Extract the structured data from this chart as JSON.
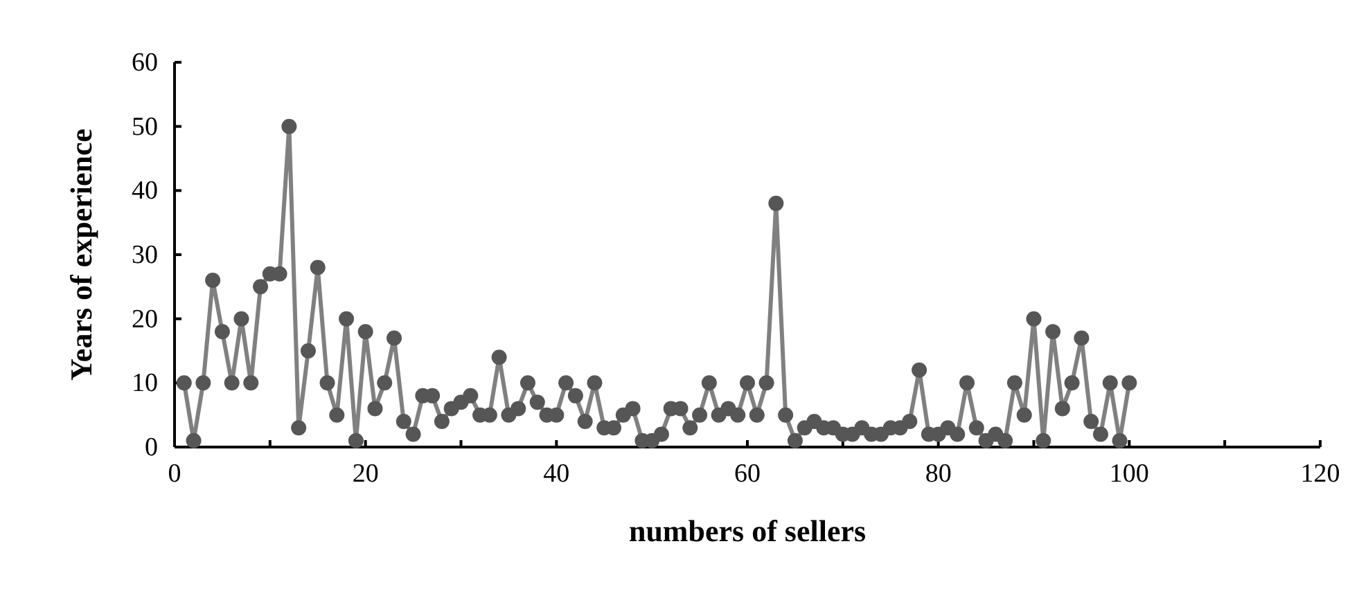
{
  "chart_data": {
    "type": "line",
    "xlabel": "numbers of sellers",
    "ylabel": "Years of experience",
    "x": [
      1,
      2,
      3,
      4,
      5,
      6,
      7,
      8,
      9,
      10,
      11,
      12,
      13,
      14,
      15,
      16,
      17,
      18,
      19,
      20,
      21,
      22,
      23,
      24,
      25,
      26,
      27,
      28,
      29,
      30,
      31,
      32,
      33,
      34,
      35,
      36,
      37,
      38,
      39,
      40,
      41,
      42,
      43,
      44,
      45,
      46,
      47,
      48,
      49,
      50,
      51,
      52,
      53,
      54,
      55,
      56,
      57,
      58,
      59,
      60,
      61,
      62,
      63,
      64,
      65,
      66,
      67,
      68,
      69,
      70,
      71,
      72,
      73,
      74,
      75,
      76,
      77,
      78,
      79,
      80,
      81,
      82,
      83,
      84,
      85,
      86,
      87,
      88,
      89,
      90,
      91,
      92,
      93,
      94,
      95,
      96,
      97,
      98,
      99,
      100
    ],
    "series": [
      {
        "color": "#808080",
        "values": [
          10,
          1,
          10,
          26,
          18,
          10,
          20,
          10,
          25,
          27,
          27,
          50,
          3,
          15,
          28,
          10,
          5,
          20,
          1,
          18,
          6,
          10,
          17,
          4,
          2,
          8,
          8,
          4,
          6,
          7,
          8,
          5,
          5,
          14,
          5,
          6,
          10,
          7,
          5,
          5,
          10,
          8,
          4,
          10,
          3,
          3,
          5,
          6,
          1,
          1,
          2,
          6,
          6,
          3,
          5,
          10,
          5,
          6,
          5,
          10,
          5,
          10,
          38,
          5,
          1,
          3,
          4,
          3,
          3,
          2,
          2,
          3,
          2,
          2,
          3,
          3,
          4,
          12,
          2,
          2,
          3,
          2,
          10,
          3,
          1,
          2,
          1,
          10,
          5,
          20,
          1,
          18,
          6,
          10,
          17,
          4,
          2,
          10,
          1,
          10
        ]
      }
    ],
    "xlim": [
      0,
      120
    ],
    "xticks": [
      0,
      {
        "value": 10,
        "label": null
      },
      20,
      {
        "value": 30,
        "label": null
      },
      40,
      {
        "value": 50,
        "label": null
      },
      60,
      {
        "value": 70,
        "label": null
      },
      80,
      {
        "value": 90,
        "label": null
      },
      100,
      {
        "value": 110,
        "label": null
      },
      120
    ],
    "ylim": [
      0,
      60
    ],
    "yticks": [
      0,
      10,
      20,
      30,
      40,
      50,
      60
    ],
    "grid": false,
    "marker": "circle",
    "line_style": "solid"
  }
}
